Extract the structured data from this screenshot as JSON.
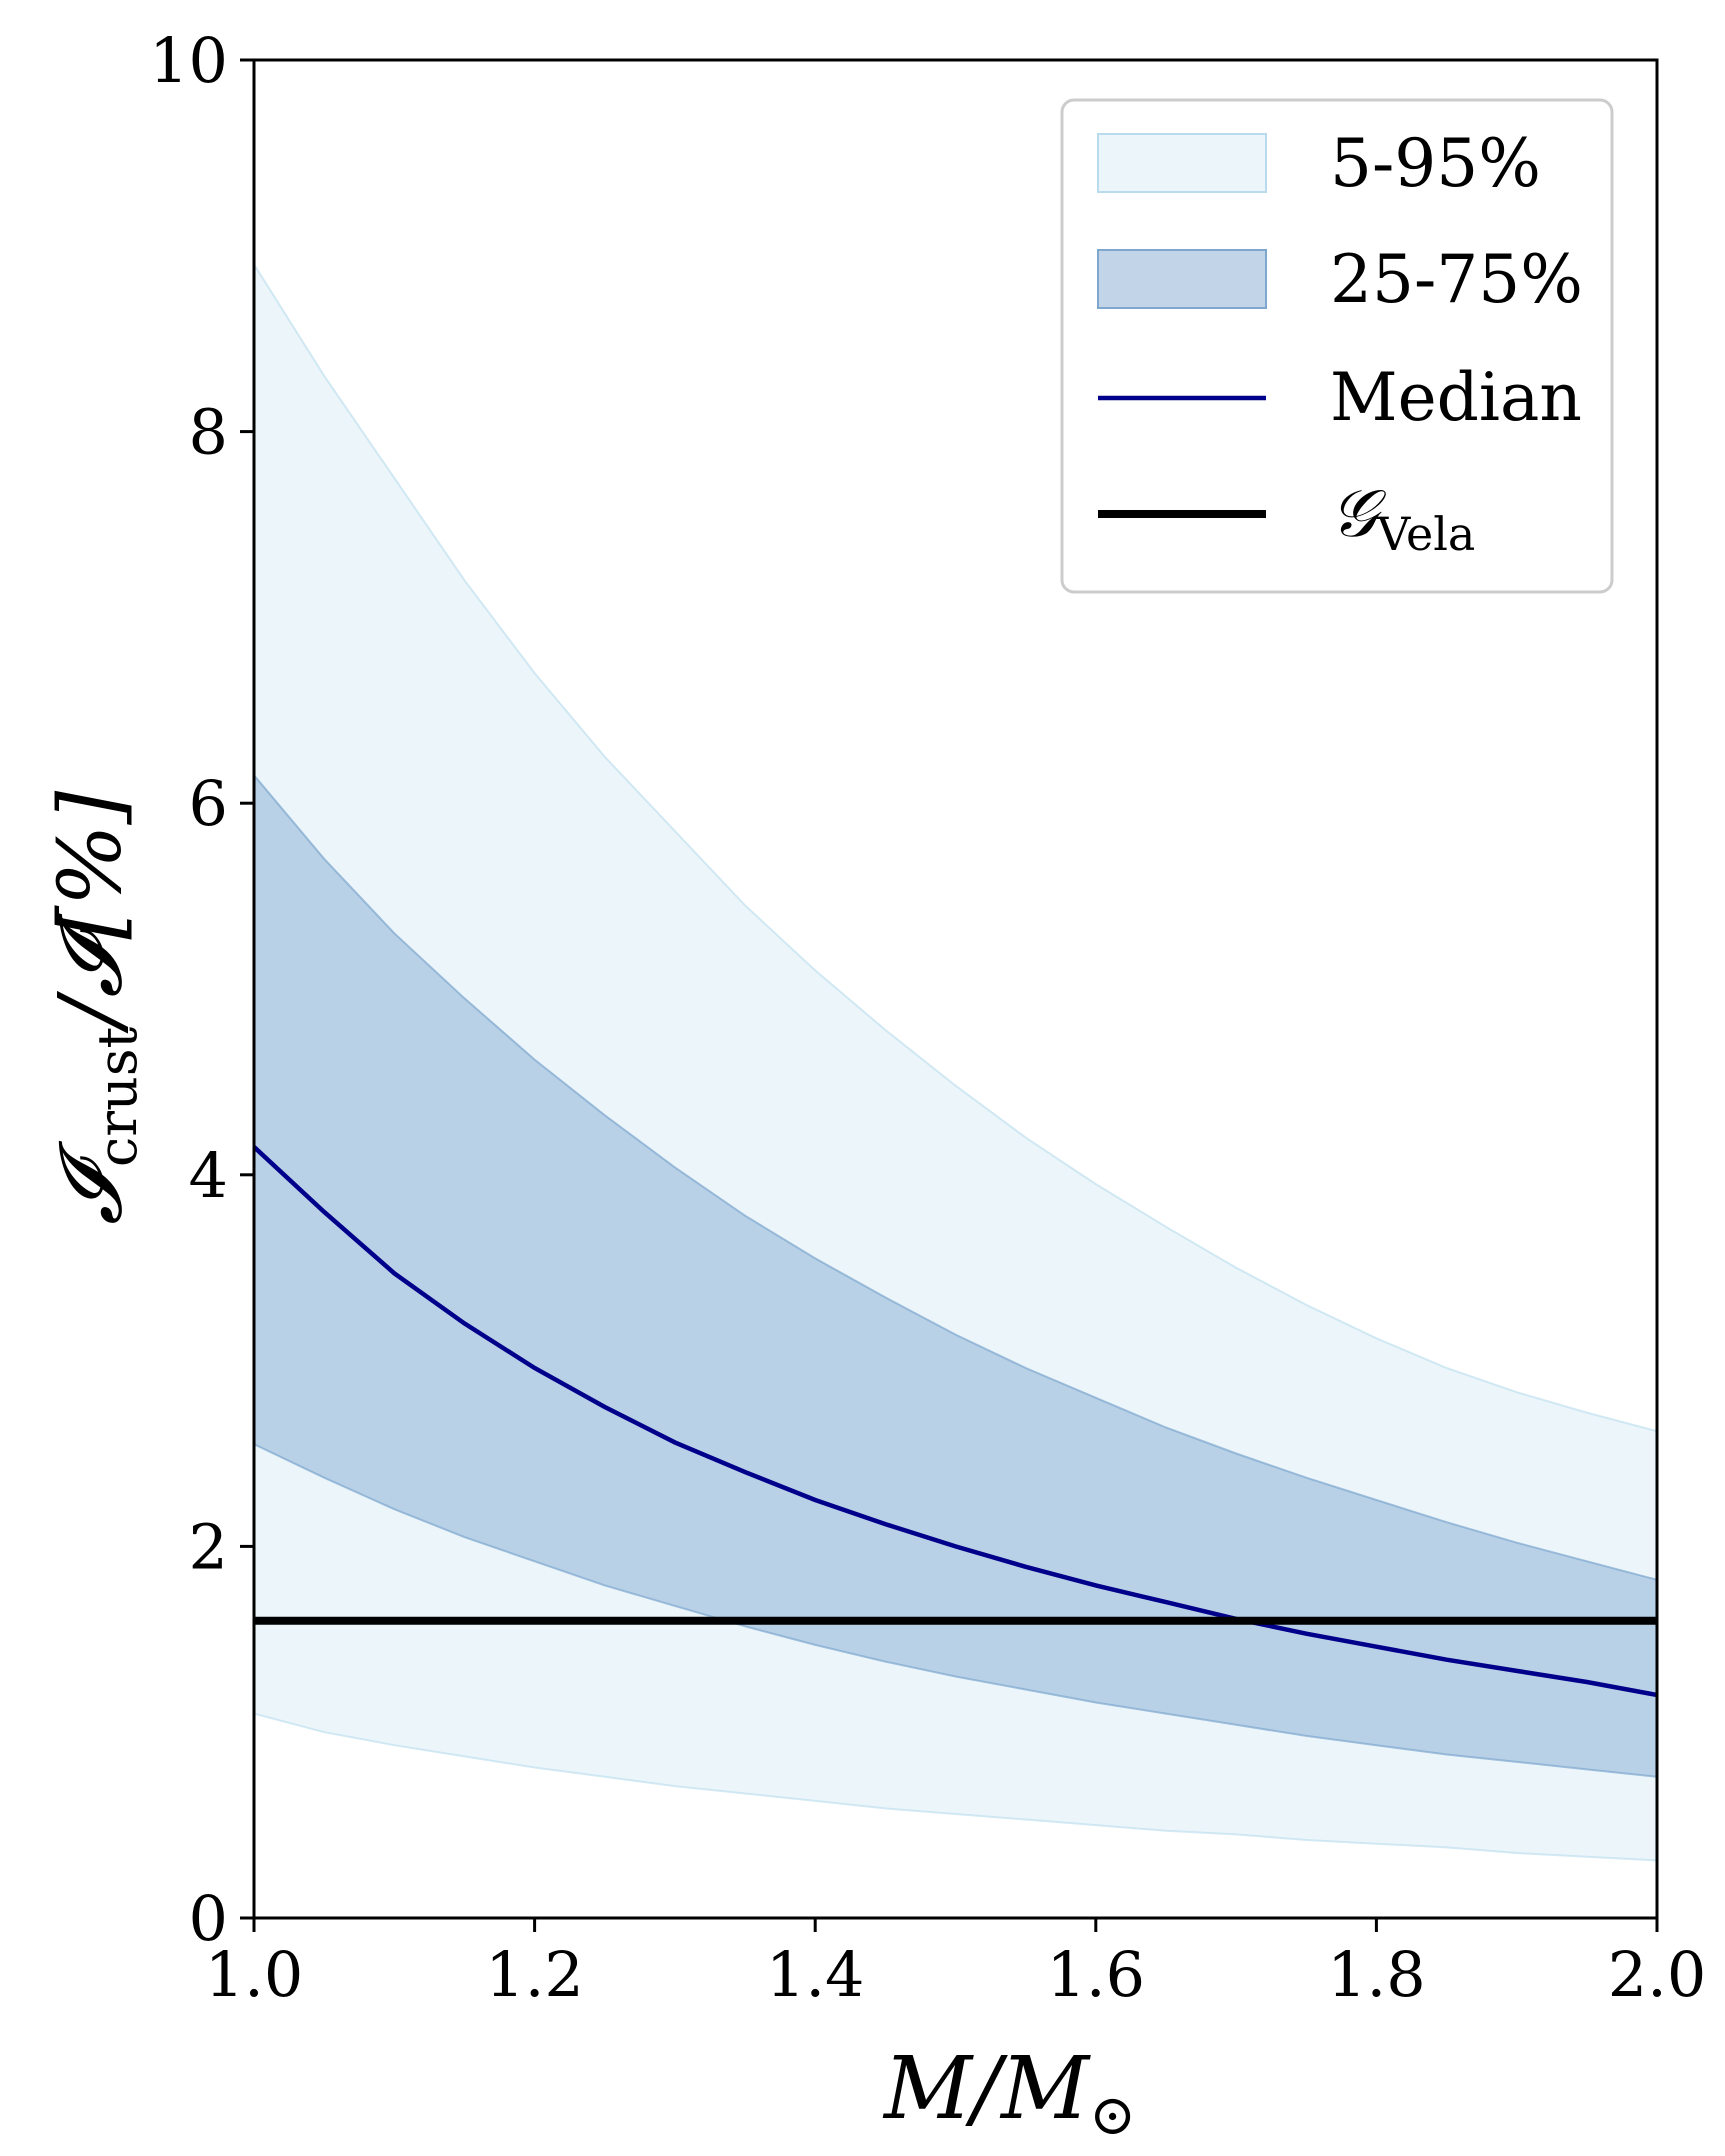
{
  "chart_data": {
    "type": "area",
    "title": "",
    "xlabel": "M/M",
    "xlabel_subscript": "⊙",
    "ylabel": "𝓘",
    "ylabel_subscript": "crust",
    "ylabel_tail": "/𝓘[%]",
    "xlim": [
      1.0,
      2.0
    ],
    "ylim": [
      0,
      10
    ],
    "xticks": [
      1.0,
      1.2,
      1.4,
      1.6,
      1.8,
      2.0
    ],
    "xtick_labels": [
      "1.0",
      "1.2",
      "1.4",
      "1.6",
      "1.8",
      "2.0"
    ],
    "yticks": [
      0,
      2,
      4,
      6,
      8,
      10
    ],
    "ytick_labels": [
      "0",
      "2",
      "4",
      "6",
      "8",
      "10"
    ],
    "grid": false,
    "legend_position": "top-right",
    "x": [
      1.0,
      1.05,
      1.1,
      1.15,
      1.2,
      1.25,
      1.3,
      1.35,
      1.4,
      1.45,
      1.5,
      1.55,
      1.6,
      1.65,
      1.7,
      1.75,
      1.8,
      1.85,
      1.9,
      1.95,
      2.0
    ],
    "series": [
      {
        "name": "5-95%",
        "kind": "band",
        "color": "#d9eef5",
        "lower": [
          1.1,
          1.0,
          0.93,
          0.87,
          0.81,
          0.76,
          0.71,
          0.67,
          0.63,
          0.59,
          0.56,
          0.53,
          0.5,
          0.47,
          0.45,
          0.42,
          0.4,
          0.38,
          0.35,
          0.33,
          0.31
        ],
        "upper": [
          8.9,
          8.3,
          7.75,
          7.2,
          6.7,
          6.25,
          5.85,
          5.45,
          5.1,
          4.78,
          4.48,
          4.2,
          3.95,
          3.72,
          3.5,
          3.3,
          3.12,
          2.96,
          2.83,
          2.72,
          2.62
        ]
      },
      {
        "name": "25-75%",
        "kind": "band",
        "color": "#8fb3d6",
        "lower": [
          2.55,
          2.37,
          2.2,
          2.05,
          1.92,
          1.79,
          1.68,
          1.57,
          1.47,
          1.38,
          1.3,
          1.23,
          1.16,
          1.1,
          1.04,
          0.98,
          0.93,
          0.88,
          0.84,
          0.8,
          0.76
        ],
        "upper": [
          6.15,
          5.7,
          5.3,
          4.95,
          4.62,
          4.32,
          4.04,
          3.78,
          3.55,
          3.34,
          3.14,
          2.96,
          2.8,
          2.64,
          2.5,
          2.37,
          2.25,
          2.13,
          2.02,
          1.92,
          1.82
        ]
      },
      {
        "name": "Median",
        "kind": "line",
        "color": "#00008b",
        "values": [
          4.15,
          3.8,
          3.47,
          3.2,
          2.96,
          2.75,
          2.56,
          2.4,
          2.25,
          2.12,
          2.0,
          1.89,
          1.79,
          1.7,
          1.61,
          1.53,
          1.46,
          1.39,
          1.33,
          1.27,
          1.2
        ]
      },
      {
        "name": "𝒢",
        "name_subscript": "Vela",
        "kind": "hline",
        "color": "#000000",
        "value": 1.6
      }
    ]
  }
}
